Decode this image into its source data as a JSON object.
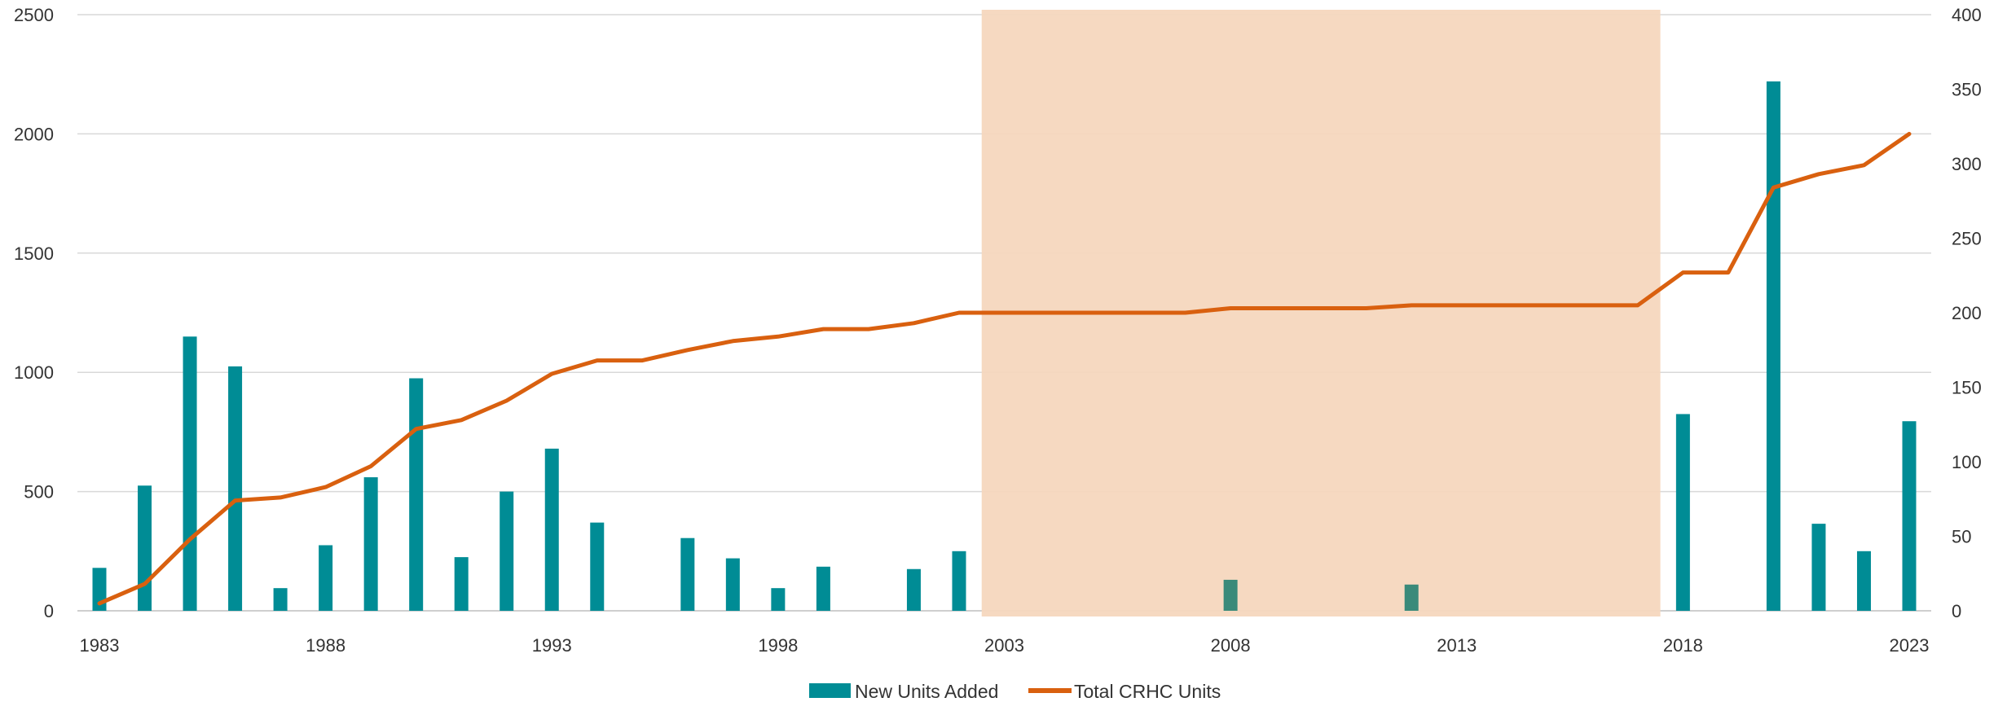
{
  "chart_data": {
    "type": "bar+line",
    "title": "",
    "xlabel": "",
    "ylabel": "",
    "x": [
      1983,
      1984,
      1985,
      1986,
      1987,
      1988,
      1989,
      1990,
      1991,
      1992,
      1993,
      1994,
      1995,
      1996,
      1997,
      1998,
      1999,
      2000,
      2001,
      2002,
      2003,
      2004,
      2005,
      2006,
      2007,
      2008,
      2009,
      2010,
      2011,
      2012,
      2013,
      2014,
      2015,
      2016,
      2017,
      2018,
      2019,
      2020,
      2021,
      2022,
      2023
    ],
    "x_tick_labels": [
      "1983",
      "1988",
      "1993",
      "1998",
      "2003",
      "2008",
      "2013",
      "2018",
      "2023"
    ],
    "y_left": {
      "min": 0,
      "max": 2500,
      "ticks": [
        "0",
        "500",
        "1000",
        "1500",
        "2000",
        "2500"
      ]
    },
    "y_right": {
      "min": 0,
      "max": 400,
      "ticks": [
        "0",
        "50",
        "100",
        "150",
        "200",
        "250",
        "300",
        "350",
        "400"
      ]
    },
    "grid": true,
    "legend_position": "bottom-center",
    "shaded_region": {
      "from": 2002.5,
      "to": 2017.5,
      "color": "#f5d7be"
    },
    "series": [
      {
        "name": "New Units Added",
        "type": "bar",
        "axis": "left",
        "color": "#008c95",
        "highlight_color": "#3a8a7a",
        "values": [
          180,
          525,
          1150,
          1025,
          95,
          275,
          560,
          975,
          225,
          500,
          680,
          370,
          0,
          305,
          220,
          95,
          185,
          0,
          175,
          250,
          0,
          0,
          0,
          0,
          0,
          130,
          0,
          0,
          0,
          110,
          0,
          0,
          0,
          0,
          0,
          825,
          0,
          2220,
          365,
          250,
          795
        ]
      },
      {
        "name": "Total CRHC Units",
        "type": "line",
        "axis": "right",
        "color": "#d9600f",
        "values": [
          5,
          18,
          48,
          74,
          76,
          83,
          97,
          122,
          128,
          141,
          159,
          168,
          168,
          175,
          181,
          184,
          189,
          189,
          193,
          200,
          200,
          200,
          200,
          200,
          200,
          203,
          203,
          203,
          203,
          205,
          205,
          205,
          205,
          205,
          205,
          227,
          227,
          284,
          293,
          299,
          320
        ]
      }
    ]
  }
}
